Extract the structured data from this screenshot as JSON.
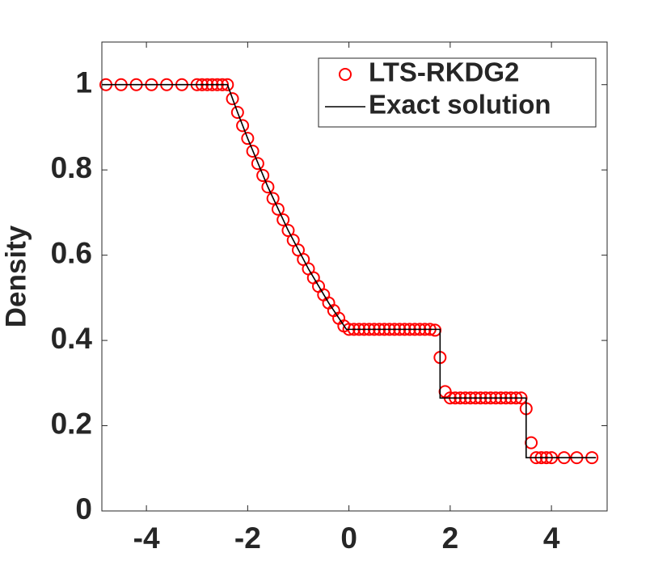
{
  "chart_data": {
    "type": "line",
    "ylabel": "Density",
    "xlim": [
      -4.88,
      5.1
    ],
    "ylim": [
      0,
      1.1
    ],
    "xticks": [
      -4,
      -2,
      0,
      2,
      4
    ],
    "yticks": [
      0,
      0.2,
      0.4,
      0.6,
      0.8,
      1
    ],
    "grid": false,
    "legend": "upper right",
    "series": [
      {
        "name": "LTS-RKDG2",
        "color": "#ff0000",
        "marker": "circle",
        "linestyle": "none",
        "x": [
          -4.8,
          -4.5,
          -4.2,
          -3.9,
          -3.6,
          -3.3,
          -3.0,
          -2.9,
          -2.8,
          -2.7,
          -2.6,
          -2.5,
          -2.4,
          -2.3,
          -2.2,
          -2.1,
          -2.0,
          -1.9,
          -1.8,
          -1.7,
          -1.6,
          -1.5,
          -1.4,
          -1.3,
          -1.2,
          -1.1,
          -1.0,
          -0.9,
          -0.8,
          -0.7,
          -0.6,
          -0.5,
          -0.4,
          -0.3,
          -0.2,
          -0.1,
          0.0,
          0.1,
          0.2,
          0.3,
          0.4,
          0.5,
          0.6,
          0.7,
          0.8,
          0.9,
          1.0,
          1.1,
          1.2,
          1.3,
          1.4,
          1.5,
          1.6,
          1.7,
          1.8,
          1.9,
          2.0,
          2.1,
          2.2,
          2.3,
          2.4,
          2.5,
          2.6,
          2.7,
          2.8,
          2.9,
          3.0,
          3.1,
          3.2,
          3.3,
          3.4,
          3.5,
          3.6,
          3.7,
          3.8,
          3.9,
          4.0,
          4.25,
          4.5,
          4.8
        ],
        "values": [
          1,
          1,
          1,
          1,
          1,
          1,
          1,
          1,
          1,
          1,
          1,
          1,
          1,
          0.967,
          0.935,
          0.904,
          0.874,
          0.844,
          0.815,
          0.787,
          0.76,
          0.733,
          0.708,
          0.683,
          0.658,
          0.635,
          0.612,
          0.59,
          0.568,
          0.547,
          0.527,
          0.507,
          0.488,
          0.47,
          0.452,
          0.434,
          0.426,
          0.426,
          0.426,
          0.426,
          0.426,
          0.426,
          0.426,
          0.426,
          0.426,
          0.426,
          0.426,
          0.426,
          0.426,
          0.426,
          0.426,
          0.426,
          0.426,
          0.424,
          0.36,
          0.28,
          0.265,
          0.265,
          0.265,
          0.265,
          0.265,
          0.265,
          0.265,
          0.265,
          0.265,
          0.265,
          0.265,
          0.265,
          0.265,
          0.265,
          0.265,
          0.24,
          0.16,
          0.125,
          0.125,
          0.125,
          0.125,
          0.125,
          0.125,
          0.125
        ]
      },
      {
        "name": "Exact solution",
        "color": "#000000",
        "marker": "none",
        "linestyle": "solid",
        "x": [
          -4.88,
          -2.4,
          -2.2,
          -2.0,
          -1.6,
          -1.2,
          -0.8,
          -0.4,
          -0.05,
          1.8,
          1.8,
          3.5,
          3.5,
          4.88
        ],
        "values": [
          1,
          1,
          0.935,
          0.874,
          0.76,
          0.658,
          0.568,
          0.488,
          0.426,
          0.426,
          0.265,
          0.265,
          0.125,
          0.125
        ]
      }
    ]
  }
}
